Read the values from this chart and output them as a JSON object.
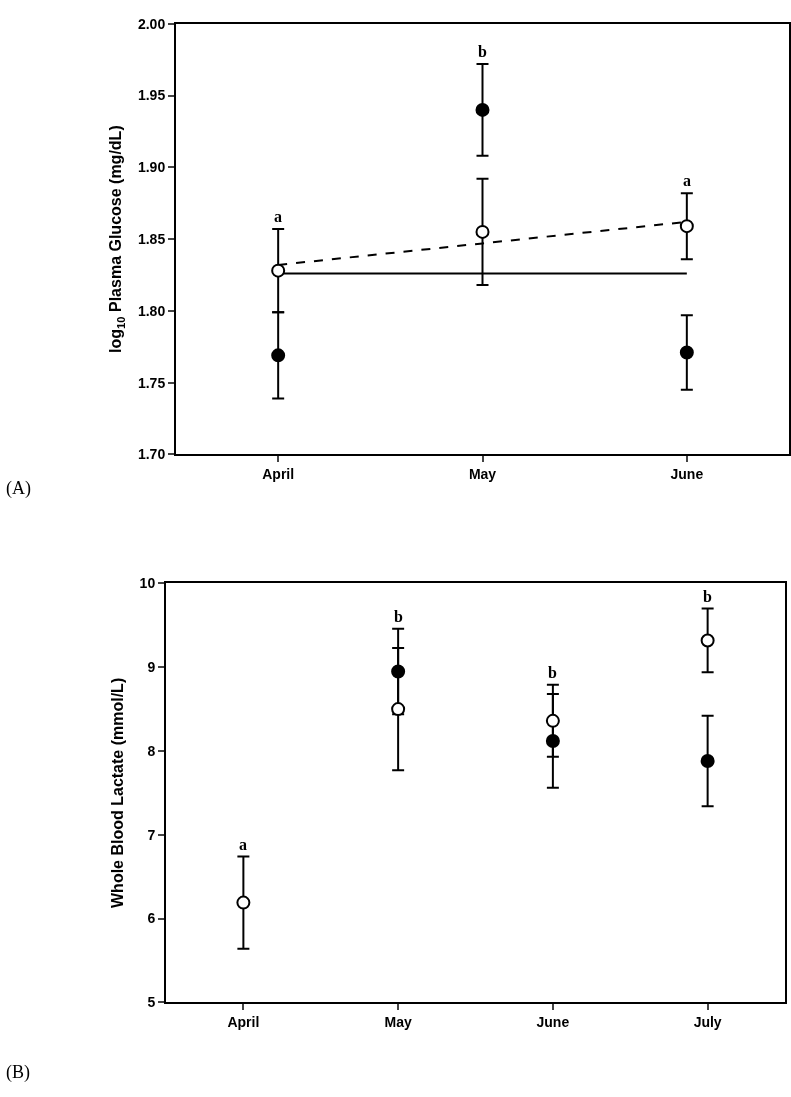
{
  "chart_data": [
    {
      "type": "scatter",
      "categories": [
        "April",
        "May",
        "June"
      ],
      "ylabel": "log$_{10}$ Plasma Glucose (mg/dL)",
      "ylim": [
        1.7,
        2.0
      ],
      "yticks": [
        {
          "value": 1.7,
          "label": "1.70"
        },
        {
          "value": 1.75,
          "label": "1.75"
        },
        {
          "value": 1.8,
          "label": "1.80"
        },
        {
          "value": 1.85,
          "label": "1.85"
        },
        {
          "value": 1.9,
          "label": "1.90"
        },
        {
          "value": 1.95,
          "label": "1.95"
        },
        {
          "value": 2.0,
          "label": "2.00"
        }
      ],
      "marker": "circle",
      "series": [
        {
          "type": "line",
          "color": "#000000",
          "line_style": "dashed",
          "marker": "none",
          "values": [
            1.832,
            1.847,
            1.862
          ]
        },
        {
          "type": "line",
          "color": "#000000",
          "line_style": "solid",
          "marker": "none",
          "values": [
            1.826,
            1.826,
            1.826
          ]
        },
        {
          "color": "#000000",
          "values": [
            1.769,
            1.94,
            1.771
          ],
          "errors": [
            0.03,
            0.032,
            0.026
          ]
        },
        {
          "color": "#ffffff",
          "values": [
            1.828,
            1.855,
            1.859
          ],
          "errors": [
            0.029,
            0.037,
            0.023
          ]
        }
      ],
      "annotations": [
        "a",
        "b",
        "a",
        "(A)"
      ]
    },
    {
      "type": "scatter",
      "categories": [
        "April",
        "May",
        "June",
        "July"
      ],
      "ylabel": "Whole Blood Lactate (mmol/L)",
      "ylim": [
        5,
        10
      ],
      "yticks": [
        5,
        6,
        7,
        8,
        9,
        10
      ],
      "marker": "circle",
      "series": [
        {
          "color": "#000000",
          "values": [
            null,
            8.95,
            8.12,
            7.88
          ],
          "errors": [
            null,
            0.51,
            0.56,
            0.54
          ]
        },
        {
          "color": "#ffffff",
          "values": [
            6.19,
            8.5,
            8.36,
            9.32
          ],
          "errors": [
            0.55,
            0.73,
            0.43,
            0.38
          ]
        }
      ],
      "annotations": [
        "a",
        "b",
        "b",
        "b",
        "(B)"
      ]
    }
  ]
}
